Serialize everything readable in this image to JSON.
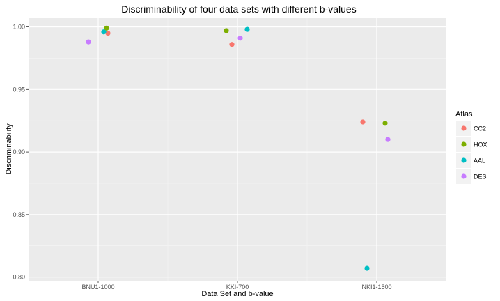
{
  "chart_data": {
    "type": "scatter",
    "title": "Discriminability of four data sets with different b-values",
    "xlabel": "Data Set and b-value",
    "ylabel": "Discriminability",
    "categories": [
      "BNU1-1000",
      "KKI-700",
      "NKI1-1500"
    ],
    "ylim": [
      0.797,
      1.007
    ],
    "yticks": [
      "0.80",
      "0.85",
      "0.90",
      "0.95",
      "1.00"
    ],
    "ytick_values": [
      0.8,
      0.85,
      0.9,
      0.95,
      1.0
    ],
    "grid": true,
    "legend": {
      "title": "Atlas",
      "position": "right"
    },
    "series": [
      {
        "name": "CC2",
        "color": "#F8766D",
        "points": [
          {
            "category": "BNU1-1000",
            "jitter": 0.07,
            "y": 0.995
          },
          {
            "category": "KKI-700",
            "jitter": -0.04,
            "y": 0.986
          },
          {
            "category": "NKI1-1500",
            "jitter": -0.1,
            "y": 0.924
          }
        ]
      },
      {
        "name": "HOX",
        "color": "#7CAE00",
        "points": [
          {
            "category": "BNU1-1000",
            "jitter": 0.06,
            "y": 0.999
          },
          {
            "category": "KKI-700",
            "jitter": -0.08,
            "y": 0.997
          },
          {
            "category": "NKI1-1500",
            "jitter": 0.06,
            "y": 0.923
          }
        ]
      },
      {
        "name": "AAL",
        "color": "#00BFC4",
        "points": [
          {
            "category": "BNU1-1000",
            "jitter": 0.04,
            "y": 0.996
          },
          {
            "category": "KKI-700",
            "jitter": 0.07,
            "y": 0.998
          },
          {
            "category": "NKI1-1500",
            "jitter": -0.07,
            "y": 0.807
          }
        ]
      },
      {
        "name": "DES",
        "color": "#C77CFF",
        "points": [
          {
            "category": "BNU1-1000",
            "jitter": -0.07,
            "y": 0.988
          },
          {
            "category": "KKI-700",
            "jitter": 0.02,
            "y": 0.991
          },
          {
            "category": "NKI1-1500",
            "jitter": 0.08,
            "y": 0.91
          }
        ]
      }
    ]
  }
}
